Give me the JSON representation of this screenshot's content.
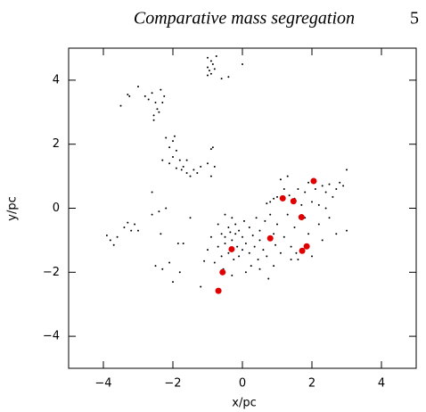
{
  "header": {
    "title": "Comparative mass segregation",
    "page": "5"
  },
  "chart_data": {
    "type": "scatter",
    "xlabel": "x/pc",
    "ylabel": "y/pc",
    "xlim": [
      -5,
      5
    ],
    "ylim": [
      -5,
      5
    ],
    "xticks": [
      {
        "value": -4,
        "label": "−4"
      },
      {
        "value": -2,
        "label": "−2"
      },
      0,
      2,
      4
    ],
    "yticks": [
      {
        "value": -4,
        "label": "−4"
      },
      {
        "value": -2,
        "label": "−2"
      },
      0,
      2,
      4
    ],
    "series": [
      {
        "color": "#000000",
        "x": [
          -1.0,
          -0.9,
          -0.85,
          -1.0,
          -0.95,
          -0.9,
          -1.0,
          -0.8,
          -0.6,
          -0.4,
          0.0,
          -0.75,
          -3.5,
          -3.3,
          -3.25,
          -3.0,
          -2.8,
          -2.7,
          -2.6,
          -2.5,
          -2.45,
          -2.55,
          -2.55,
          -2.35,
          -2.25,
          -2.3,
          -2.4,
          -2.2,
          -2.0,
          -1.95,
          -2.1,
          -1.9,
          -2.0,
          -1.8,
          -2.1,
          -1.9,
          -1.7,
          -1.6,
          -1.4,
          -1.3,
          -1.5,
          -1.2,
          -1.0,
          -0.85,
          -0.9,
          -0.8,
          -0.9,
          -1.6,
          -1.75,
          -2.3,
          -3.9,
          -3.8,
          -3.7,
          -3.6,
          -3.4,
          -3.3,
          -3.1,
          -3.0,
          -3.2,
          -2.6,
          -2.6,
          -2.4,
          -2.2,
          -2.35,
          -2.1,
          -2.5,
          -2.3,
          -2.0,
          -1.8,
          -1.85,
          -1.7,
          -1.5,
          -1.2,
          -1.1,
          -1.0,
          -0.9,
          -0.8,
          -0.7,
          -0.7,
          -0.6,
          -0.6,
          -0.5,
          -0.5,
          -0.5,
          -0.4,
          -0.4,
          -0.35,
          -0.3,
          -0.3,
          -0.25,
          -0.2,
          -0.2,
          -0.15,
          -0.1,
          -0.1,
          0.0,
          0.0,
          0.05,
          0.1,
          0.1,
          0.2,
          0.2,
          0.3,
          0.35,
          0.4,
          0.45,
          0.5,
          0.5,
          0.6,
          0.65,
          0.7,
          0.75,
          0.8,
          0.9,
          0.95,
          1.0,
          1.1,
          1.2,
          -0.55,
          -0.3,
          0.25,
          0.5,
          0.9,
          1.3,
          1.4,
          1.5,
          0.7,
          0.8,
          0.9,
          1.0,
          1.1,
          1.2,
          1.3,
          1.35,
          1.5,
          1.6,
          1.7,
          1.8,
          1.9,
          2.0,
          2.1,
          2.2,
          2.3,
          2.4,
          2.5,
          2.6,
          2.7,
          2.8,
          2.9,
          3.0,
          2.2,
          2.5,
          2.7,
          3.0,
          1.9,
          2.0,
          1.6,
          1.4,
          2.3,
          1.8,
          1.55,
          2.4
        ],
        "values": [
          4.7,
          4.6,
          4.5,
          4.4,
          4.3,
          4.2,
          4.15,
          4.35,
          4.05,
          4.1,
          4.5,
          4.75,
          3.2,
          3.55,
          3.5,
          3.8,
          3.5,
          3.4,
          3.6,
          3.3,
          3.1,
          2.9,
          2.75,
          3.7,
          3.5,
          3.3,
          3.0,
          2.2,
          2.1,
          2.25,
          1.9,
          1.8,
          1.6,
          1.5,
          1.4,
          1.25,
          1.3,
          1.1,
          1.2,
          1.1,
          1.0,
          1.3,
          1.4,
          1.9,
          1.85,
          1.3,
          1.0,
          1.5,
          1.2,
          1.5,
          -0.85,
          -1.0,
          -1.15,
          -0.9,
          -0.6,
          -0.45,
          -0.5,
          -0.7,
          -0.7,
          0.5,
          -0.2,
          -0.1,
          0.0,
          -0.8,
          -1.7,
          -1.8,
          -1.9,
          -2.3,
          -2.0,
          -1.1,
          -1.1,
          -0.3,
          -2.45,
          -1.65,
          -1.3,
          -0.9,
          -1.7,
          -0.5,
          -1.2,
          -0.8,
          -1.5,
          -0.2,
          -0.9,
          -1.1,
          -0.6,
          -1.4,
          -0.75,
          -0.3,
          -1.0,
          -1.6,
          -0.5,
          -0.8,
          -1.2,
          -0.7,
          -1.5,
          -0.9,
          -1.3,
          -0.4,
          -1.1,
          -2.0,
          -0.6,
          -1.4,
          -0.85,
          -1.2,
          -0.3,
          -1.6,
          -0.7,
          -1.0,
          -1.3,
          -0.4,
          -1.5,
          -2.2,
          -0.2,
          -0.8,
          -1.15,
          -0.5,
          -1.4,
          -0.9,
          -1.9,
          -2.1,
          -1.8,
          -1.9,
          -1.8,
          -0.2,
          -1.6,
          -0.6,
          0.15,
          0.2,
          0.3,
          0.35,
          0.9,
          0.6,
          1.0,
          0.4,
          0.3,
          0.6,
          0.1,
          0.5,
          0.8,
          0.2,
          0.6,
          0.1,
          0.7,
          0.5,
          0.75,
          0.35,
          0.6,
          0.8,
          0.7,
          1.2,
          -0.5,
          -0.3,
          -0.8,
          -0.7,
          -0.8,
          -1.5,
          -1.6,
          -1.2,
          -1.0,
          -0.3,
          -1.4,
          0.0
        ]
      },
      {
        "color": "#e00000",
        "x": [
          2.05,
          1.16,
          1.47,
          1.7,
          0.8,
          1.85,
          1.72,
          -0.31,
          -0.57,
          -0.69
        ],
        "values": [
          0.85,
          0.31,
          0.22,
          -0.28,
          -0.94,
          -1.19,
          -1.33,
          -1.28,
          -2.0,
          -2.58
        ]
      }
    ]
  }
}
